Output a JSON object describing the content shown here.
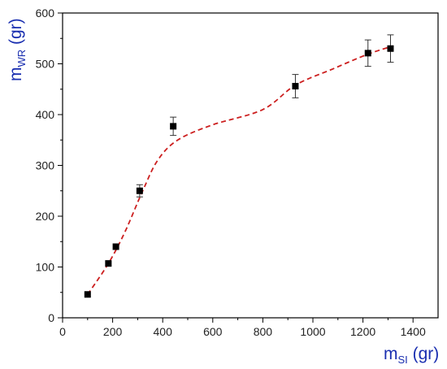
{
  "chart_data": {
    "type": "scatter",
    "xlabel": {
      "main": "m",
      "sub": "SI",
      "unit": " (gr)"
    },
    "ylabel": {
      "main": "m",
      "sub": "WR",
      "unit": " (gr)"
    },
    "xlim": [
      0,
      1500
    ],
    "ylim": [
      0,
      600
    ],
    "x_ticks": [
      0,
      200,
      400,
      600,
      800,
      1000,
      1200,
      1400
    ],
    "y_ticks": [
      0,
      100,
      200,
      300,
      400,
      500,
      600
    ],
    "grid": false,
    "legend": "none",
    "series": [
      {
        "marker": "square",
        "color": "#000000",
        "points": [
          {
            "x": 100,
            "y": 46,
            "err": 0
          },
          {
            "x": 183,
            "y": 107,
            "err": 0
          },
          {
            "x": 213,
            "y": 140,
            "err": 0
          },
          {
            "x": 308,
            "y": 250,
            "err": 12
          },
          {
            "x": 442,
            "y": 377,
            "err": 18
          },
          {
            "x": 930,
            "y": 456,
            "err": 23
          },
          {
            "x": 1220,
            "y": 521,
            "err": 26
          },
          {
            "x": 1310,
            "y": 530,
            "err": 27
          }
        ]
      }
    ],
    "fit_curve": {
      "style": "dashed",
      "color": "#cc1f1f",
      "points": [
        {
          "x": 100,
          "y": 46
        },
        {
          "x": 183,
          "y": 107
        },
        {
          "x": 250,
          "y": 170
        },
        {
          "x": 320,
          "y": 250
        },
        {
          "x": 380,
          "y": 310
        },
        {
          "x": 460,
          "y": 350
        },
        {
          "x": 600,
          "y": 380
        },
        {
          "x": 800,
          "y": 410
        },
        {
          "x": 930,
          "y": 458
        },
        {
          "x": 1080,
          "y": 490
        },
        {
          "x": 1220,
          "y": 519
        },
        {
          "x": 1320,
          "y": 535
        }
      ]
    }
  }
}
